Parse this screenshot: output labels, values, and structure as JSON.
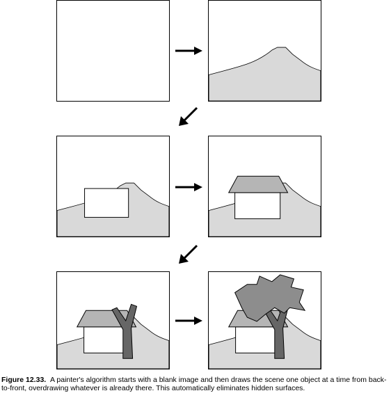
{
  "colors": {
    "hill": "#d9d9d9",
    "roof": "#b5b5b5",
    "tree": "#666666",
    "canopy": "#8d8d8d",
    "house": "#ffffff",
    "outline": "#000000"
  },
  "caption": {
    "label": "Figure 12.33.",
    "text": "A painter's algorithm starts with a blank image and then draws the scene one object at a time from back-to-front, overdrawing whatever is already there. This automatically eliminates hidden surfaces."
  },
  "steps": [
    {
      "id": 1,
      "layers": []
    },
    {
      "id": 2,
      "layers": [
        "hill"
      ]
    },
    {
      "id": 3,
      "layers": [
        "hill",
        "wall"
      ]
    },
    {
      "id": 4,
      "layers": [
        "hill",
        "wall",
        "roof"
      ]
    },
    {
      "id": 5,
      "layers": [
        "hill",
        "wall",
        "roof",
        "trunk"
      ]
    },
    {
      "id": 6,
      "layers": [
        "hill",
        "wall",
        "roof",
        "trunk",
        "canopy"
      ]
    }
  ]
}
